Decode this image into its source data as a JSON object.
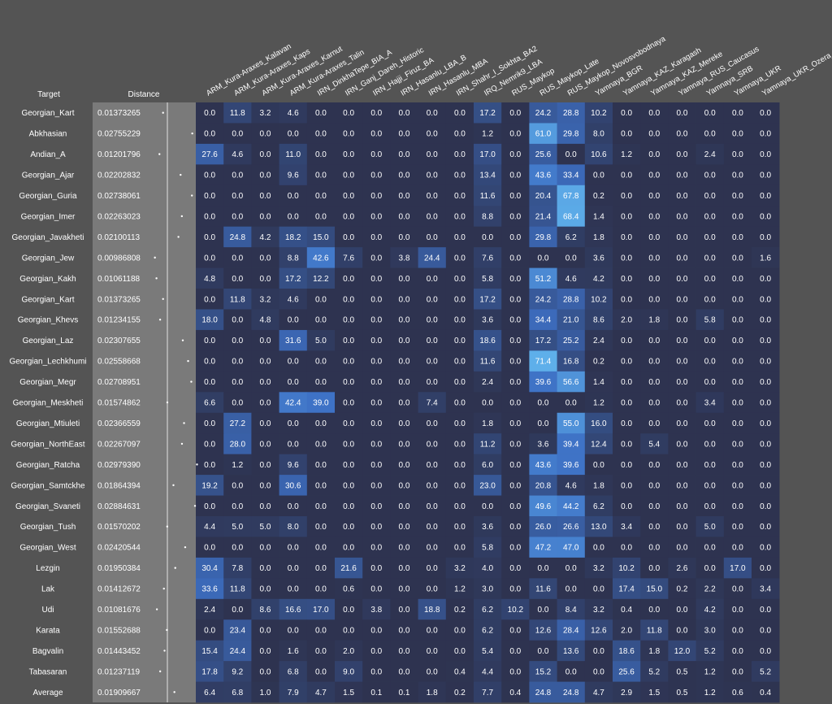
{
  "chart_data": {
    "type": "heatmap",
    "target_header": "Target",
    "distance_header": "Distance",
    "columns": [
      "ARM_Kura-Araxes_Kalavan",
      "ARM_Kura-Araxes_Kaps",
      "ARM_Kura-Araxes_Karnut",
      "ARM_Kura-Araxes_Talin",
      "IRN_DinkhaTepe_BIA_A",
      "IRN_Ganj_Dareh_Historic",
      "IRN_Hajji_Firuz_BA",
      "IRN_Hasanlu_LBA_B",
      "IRN_Hasanlu_MBA",
      "IRN_Shahr_I_Sokhta_BA2",
      "IRQ_Nemrik9_LBA",
      "RUS_Maykop",
      "RUS_Maykop_Late",
      "RUS_Maykop_Novosvobodnaya",
      "Yamnaya_BGR",
      "Yamnaya_KAZ_Karagash",
      "Yamnaya_KAZ_Mereke",
      "Yamnaya_RUS_Caucasus",
      "Yamnaya_SRB",
      "Yamnaya_UKR",
      "Yamnaya_UKR_Ozera_o"
    ],
    "rows": [
      {
        "target": "Georgian_Kart",
        "distance": "0.01373265",
        "values": [
          0.0,
          11.8,
          3.2,
          4.6,
          0.0,
          0.0,
          0.0,
          0.0,
          0.0,
          0.0,
          17.2,
          0.0,
          24.2,
          28.8,
          10.2,
          0.0,
          0.0,
          0.0,
          0.0,
          0.0,
          0.0
        ]
      },
      {
        "target": "Abkhasian",
        "distance": "0.02755229",
        "values": [
          0.0,
          0.0,
          0.0,
          0.0,
          0.0,
          0.0,
          0.0,
          0.0,
          0.0,
          0.0,
          1.2,
          0.0,
          61.0,
          29.8,
          8.0,
          0.0,
          0.0,
          0.0,
          0.0,
          0.0,
          0.0
        ]
      },
      {
        "target": "Andian_A",
        "distance": "0.01201796",
        "values": [
          27.6,
          4.6,
          0.0,
          11.0,
          0.0,
          0.0,
          0.0,
          0.0,
          0.0,
          0.0,
          17.0,
          0.0,
          25.6,
          0.0,
          10.6,
          1.2,
          0.0,
          0.0,
          2.4,
          0.0,
          0.0
        ]
      },
      {
        "target": "Georgian_Ajar",
        "distance": "0.02202832",
        "values": [
          0.0,
          0.0,
          0.0,
          9.6,
          0.0,
          0.0,
          0.0,
          0.0,
          0.0,
          0.0,
          13.4,
          0.0,
          43.6,
          33.4,
          0.0,
          0.0,
          0.0,
          0.0,
          0.0,
          0.0,
          0.0
        ]
      },
      {
        "target": "Georgian_Guria",
        "distance": "0.02738061",
        "values": [
          0.0,
          0.0,
          0.0,
          0.0,
          0.0,
          0.0,
          0.0,
          0.0,
          0.0,
          0.0,
          11.6,
          0.0,
          20.4,
          67.8,
          0.2,
          0.0,
          0.0,
          0.0,
          0.0,
          0.0,
          0.0
        ]
      },
      {
        "target": "Georgian_Imer",
        "distance": "0.02263023",
        "values": [
          0.0,
          0.0,
          0.0,
          0.0,
          0.0,
          0.0,
          0.0,
          0.0,
          0.0,
          0.0,
          8.8,
          0.0,
          21.4,
          68.4,
          1.4,
          0.0,
          0.0,
          0.0,
          0.0,
          0.0,
          0.0
        ]
      },
      {
        "target": "Georgian_Javakheti",
        "distance": "0.02100113",
        "values": [
          0.0,
          24.8,
          4.2,
          18.2,
          15.0,
          0.0,
          0.0,
          0.0,
          0.0,
          0.0,
          0.0,
          0.0,
          29.8,
          6.2,
          1.8,
          0.0,
          0.0,
          0.0,
          0.0,
          0.0,
          0.0
        ]
      },
      {
        "target": "Georgian_Jew",
        "distance": "0.00986808",
        "values": [
          0.0,
          0.0,
          0.0,
          8.8,
          42.6,
          7.6,
          0.0,
          3.8,
          24.4,
          0.0,
          7.6,
          0.0,
          0.0,
          0.0,
          3.6,
          0.0,
          0.0,
          0.0,
          0.0,
          0.0,
          1.6
        ]
      },
      {
        "target": "Georgian_Kakh",
        "distance": "0.01061188",
        "values": [
          4.8,
          0.0,
          0.0,
          17.2,
          12.2,
          0.0,
          0.0,
          0.0,
          0.0,
          0.0,
          5.8,
          0.0,
          51.2,
          4.6,
          4.2,
          0.0,
          0.0,
          0.0,
          0.0,
          0.0,
          0.0
        ]
      },
      {
        "target": "Georgian_Kart",
        "distance": "0.01373265",
        "values": [
          0.0,
          11.8,
          3.2,
          4.6,
          0.0,
          0.0,
          0.0,
          0.0,
          0.0,
          0.0,
          17.2,
          0.0,
          24.2,
          28.8,
          10.2,
          0.0,
          0.0,
          0.0,
          0.0,
          0.0,
          0.0
        ]
      },
      {
        "target": "Georgian_Khevs",
        "distance": "0.01234155",
        "values": [
          18.0,
          0.0,
          4.8,
          0.0,
          0.0,
          0.0,
          0.0,
          0.0,
          0.0,
          0.0,
          3.6,
          0.0,
          34.4,
          21.0,
          8.6,
          2.0,
          1.8,
          0.0,
          5.8,
          0.0,
          0.0
        ]
      },
      {
        "target": "Georgian_Laz",
        "distance": "0.02307655",
        "values": [
          0.0,
          0.0,
          0.0,
          31.6,
          5.0,
          0.0,
          0.0,
          0.0,
          0.0,
          0.0,
          18.6,
          0.0,
          17.2,
          25.2,
          2.4,
          0.0,
          0.0,
          0.0,
          0.0,
          0.0,
          0.0
        ]
      },
      {
        "target": "Georgian_Lechkhumi",
        "distance": "0.02558668",
        "values": [
          0.0,
          0.0,
          0.0,
          0.0,
          0.0,
          0.0,
          0.0,
          0.0,
          0.0,
          0.0,
          11.6,
          0.0,
          71.4,
          16.8,
          0.2,
          0.0,
          0.0,
          0.0,
          0.0,
          0.0,
          0.0
        ]
      },
      {
        "target": "Georgian_Megr",
        "distance": "0.02708951",
        "values": [
          0.0,
          0.0,
          0.0,
          0.0,
          0.0,
          0.0,
          0.0,
          0.0,
          0.0,
          0.0,
          2.4,
          0.0,
          39.6,
          56.6,
          1.4,
          0.0,
          0.0,
          0.0,
          0.0,
          0.0,
          0.0
        ]
      },
      {
        "target": "Georgian_Meskheti",
        "distance": "0.01574862",
        "values": [
          6.6,
          0.0,
          0.0,
          42.4,
          39.0,
          0.0,
          0.0,
          0.0,
          7.4,
          0.0,
          0.0,
          0.0,
          0.0,
          0.0,
          1.2,
          0.0,
          0.0,
          0.0,
          3.4,
          0.0,
          0.0
        ]
      },
      {
        "target": "Georgian_Mtiuleti",
        "distance": "0.02366559",
        "values": [
          0.0,
          27.2,
          0.0,
          0.0,
          0.0,
          0.0,
          0.0,
          0.0,
          0.0,
          0.0,
          1.8,
          0.0,
          0.0,
          55.0,
          16.0,
          0.0,
          0.0,
          0.0,
          0.0,
          0.0,
          0.0
        ]
      },
      {
        "target": "Georgian_NorthEast",
        "distance": "0.02267097",
        "values": [
          0.0,
          28.0,
          0.0,
          0.0,
          0.0,
          0.0,
          0.0,
          0.0,
          0.0,
          0.0,
          11.2,
          0.0,
          3.6,
          39.4,
          12.4,
          0.0,
          5.4,
          0.0,
          0.0,
          0.0,
          0.0
        ]
      },
      {
        "target": "Georgian_Ratcha",
        "distance": "0.02979390",
        "values": [
          0.0,
          1.2,
          0.0,
          9.6,
          0.0,
          0.0,
          0.0,
          0.0,
          0.0,
          0.0,
          6.0,
          0.0,
          43.6,
          39.6,
          0.0,
          0.0,
          0.0,
          0.0,
          0.0,
          0.0,
          0.0
        ]
      },
      {
        "target": "Georgian_Samtckhe",
        "distance": "0.01864394",
        "values": [
          19.2,
          0.0,
          0.0,
          30.6,
          0.0,
          0.0,
          0.0,
          0.0,
          0.0,
          0.0,
          23.0,
          0.0,
          20.8,
          4.6,
          1.8,
          0.0,
          0.0,
          0.0,
          0.0,
          0.0,
          0.0
        ]
      },
      {
        "target": "Georgian_Svaneti",
        "distance": "0.02884631",
        "values": [
          0.0,
          0.0,
          0.0,
          0.0,
          0.0,
          0.0,
          0.0,
          0.0,
          0.0,
          0.0,
          0.0,
          0.0,
          49.6,
          44.2,
          6.2,
          0.0,
          0.0,
          0.0,
          0.0,
          0.0,
          0.0
        ]
      },
      {
        "target": "Georgian_Tush",
        "distance": "0.01570202",
        "values": [
          4.4,
          5.0,
          5.0,
          8.0,
          0.0,
          0.0,
          0.0,
          0.0,
          0.0,
          0.0,
          3.6,
          0.0,
          26.0,
          26.6,
          13.0,
          3.4,
          0.0,
          0.0,
          5.0,
          0.0,
          0.0
        ]
      },
      {
        "target": "Georgian_West",
        "distance": "0.02420544",
        "values": [
          0.0,
          0.0,
          0.0,
          0.0,
          0.0,
          0.0,
          0.0,
          0.0,
          0.0,
          0.0,
          5.8,
          0.0,
          47.2,
          47.0,
          0.0,
          0.0,
          0.0,
          0.0,
          0.0,
          0.0,
          0.0
        ]
      },
      {
        "target": "Lezgin",
        "distance": "0.01950384",
        "values": [
          30.4,
          7.8,
          0.0,
          0.0,
          0.0,
          21.6,
          0.0,
          0.0,
          0.0,
          3.2,
          4.0,
          0.0,
          0.0,
          0.0,
          3.2,
          10.2,
          0.0,
          2.6,
          0.0,
          17.0,
          0.0
        ]
      },
      {
        "target": "Lak",
        "distance": "0.01412672",
        "values": [
          33.6,
          11.8,
          0.0,
          0.0,
          0.0,
          0.6,
          0.0,
          0.0,
          0.0,
          1.2,
          3.0,
          0.0,
          11.6,
          0.0,
          0.0,
          17.4,
          15.0,
          0.2,
          2.2,
          0.0,
          3.4
        ]
      },
      {
        "target": "Udi",
        "distance": "0.01081676",
        "values": [
          2.4,
          0.0,
          8.6,
          16.6,
          17.0,
          0.0,
          3.8,
          0.0,
          18.8,
          0.2,
          6.2,
          10.2,
          0.0,
          8.4,
          3.2,
          0.4,
          0.0,
          0.0,
          4.2,
          0.0,
          0.0
        ]
      },
      {
        "target": "Karata",
        "distance": "0.01552688",
        "values": [
          0.0,
          23.4,
          0.0,
          0.0,
          0.0,
          0.0,
          0.0,
          0.0,
          0.0,
          0.0,
          6.2,
          0.0,
          12.6,
          28.4,
          12.6,
          2.0,
          11.8,
          0.0,
          3.0,
          0.0,
          0.0
        ]
      },
      {
        "target": "Bagvalin",
        "distance": "0.01443452",
        "values": [
          15.4,
          24.4,
          0.0,
          1.6,
          0.0,
          2.0,
          0.0,
          0.0,
          0.0,
          0.0,
          5.4,
          0.0,
          0.0,
          13.6,
          0.0,
          18.6,
          1.8,
          12.0,
          5.2,
          0.0,
          0.0
        ]
      },
      {
        "target": "Tabasaran",
        "distance": "0.01237119",
        "values": [
          17.8,
          9.2,
          0.0,
          6.8,
          0.0,
          9.0,
          0.0,
          0.0,
          0.0,
          0.4,
          4.4,
          0.0,
          15.2,
          0.0,
          0.0,
          25.6,
          5.2,
          0.5,
          1.2,
          0.0,
          5.2
        ]
      },
      {
        "target": "Average",
        "distance": "0.01909667",
        "values": [
          6.4,
          6.8,
          1.0,
          7.9,
          4.7,
          1.5,
          0.1,
          0.1,
          1.8,
          0.2,
          7.7,
          0.4,
          24.8,
          24.8,
          4.7,
          2.9,
          1.5,
          0.5,
          1.2,
          0.6,
          0.4
        ]
      }
    ],
    "distance_range": [
      0.0,
      0.03
    ],
    "value_range": [
      0,
      75
    ],
    "colors": {
      "page_background": "#545454",
      "distance_panel": "#7a7a7a",
      "distance_axis": "#c0c0c0",
      "cell_low": "#2e3350",
      "cell_mid": "#3d6fc4",
      "cell_high": "#62b6ee",
      "text": "#ffffff"
    }
  }
}
